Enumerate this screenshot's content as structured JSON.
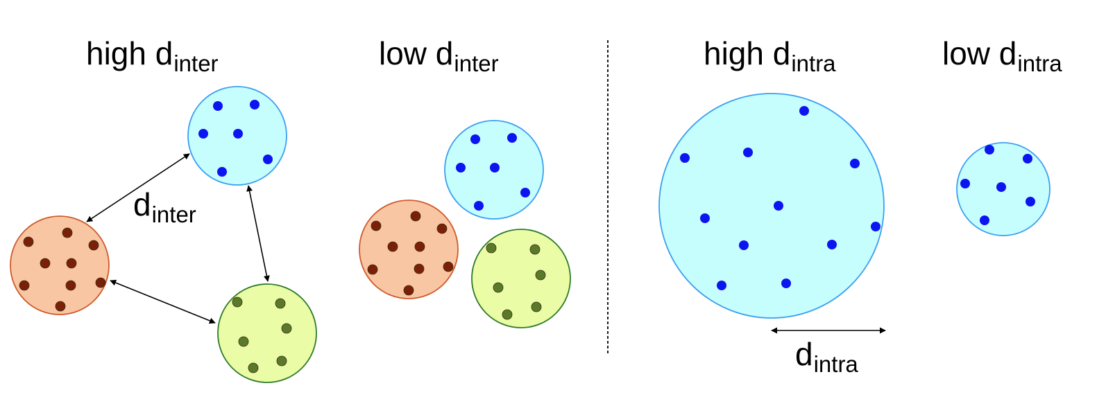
{
  "colors": {
    "blue_fill": "#c6fdfd",
    "blue_stroke": "#3b9ff0",
    "blue_point": "#0c14f0",
    "orange_fill": "#f9c6a4",
    "orange_stroke": "#cf5a2b",
    "orange_point": "#7a2008",
    "green_fill": "#eafca6",
    "green_stroke": "#2e7a28",
    "green_point": "#5a7a2a",
    "line": "#000000"
  },
  "labels": {
    "high_inter": {
      "main": "high d",
      "sub": "inter"
    },
    "low_inter": {
      "main": "low d",
      "sub": "inter"
    },
    "high_intra": {
      "main": "high d",
      "sub": "intra"
    },
    "low_intra": {
      "main": "low d",
      "sub": "intra"
    },
    "d_inter": {
      "main": "d",
      "sub": "inter"
    },
    "d_intra": {
      "main": "d",
      "sub": "intra"
    }
  }
}
